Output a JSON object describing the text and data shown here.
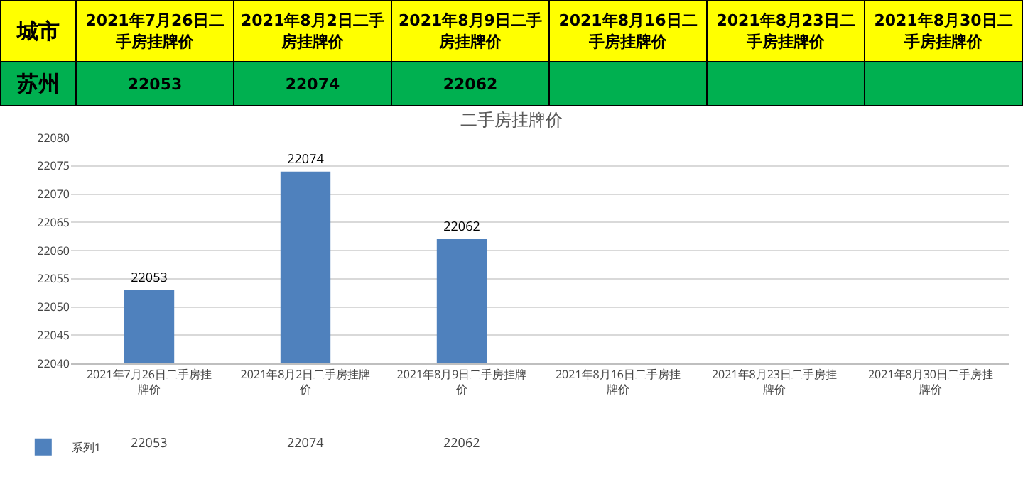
{
  "chart_data": {
    "type": "bar",
    "title": "二手房挂牌价",
    "categories": [
      "2021年7月26日二手房挂牌价",
      "2021年8月2日二手房挂牌价",
      "2021年8月9日二手房挂牌价",
      "2021年8月16日二手房挂牌价",
      "2021年8月23日二手房挂牌价",
      "2021年8月30日二手房挂牌价"
    ],
    "series": [
      {
        "name": "系列1",
        "color": "#4f81bd",
        "values": [
          22053,
          22074,
          22062,
          null,
          null,
          null
        ],
        "value_labels": [
          "22053",
          "22074",
          "22062",
          null,
          null,
          null
        ]
      }
    ],
    "ylim": [
      22040,
      22080
    ],
    "yticks": [
      22040,
      22045,
      22050,
      22055,
      22060,
      22065,
      22070,
      22075,
      22080
    ],
    "grid": "y",
    "legend": "bottom left",
    "annotations": [
      "城市",
      "苏州"
    ]
  }
}
